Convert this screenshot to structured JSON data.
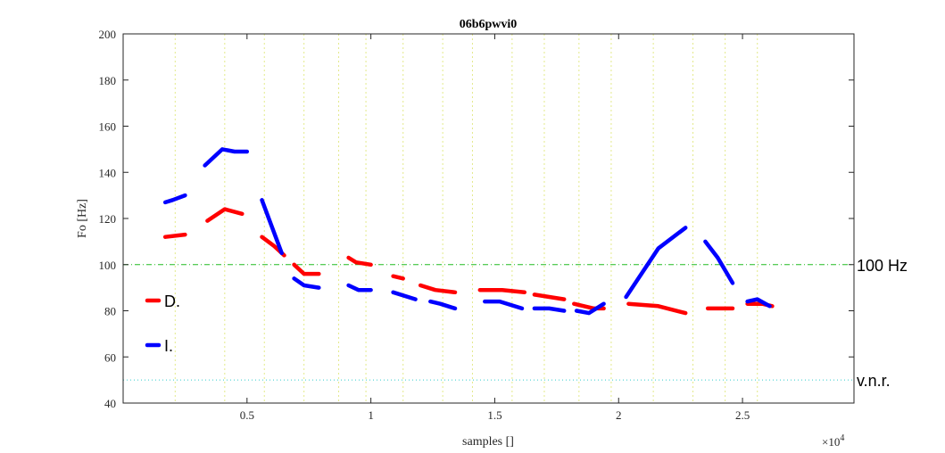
{
  "chart_data": {
    "type": "line",
    "title": "06b6pwvi0",
    "xlabel": "samples []",
    "ylabel": "Fo [Hz]",
    "x_exponent_label": "×10",
    "x_exponent_power": "4",
    "xlim": [
      0,
      29500
    ],
    "ylim": [
      40,
      200
    ],
    "x_ticks": [
      5000,
      10000,
      15000,
      20000,
      25000
    ],
    "x_tick_labels": [
      "0.5",
      "1",
      "1.5",
      "2",
      "2.5"
    ],
    "y_ticks": [
      40,
      60,
      80,
      100,
      120,
      140,
      160,
      180,
      200
    ],
    "y_tick_labels": [
      "40",
      "60",
      "80",
      "100",
      "120",
      "140",
      "160",
      "180",
      "200"
    ],
    "vertical_markers": [
      2100,
      4100,
      5700,
      7300,
      8700,
      9800,
      11300,
      12900,
      14100,
      15700,
      17000,
      18400,
      19700,
      21400,
      23000,
      24300,
      25600
    ],
    "reference_lines": [
      {
        "label": "100 Hz",
        "y": 100,
        "color": "#22bb22",
        "style": "dashdot"
      },
      {
        "label": "v.n.r.",
        "y": 50,
        "color": "#33cccc",
        "style": "dotted"
      }
    ],
    "legend_placement": "left",
    "series": [
      {
        "name": "D.",
        "color": "#ff0000",
        "style": "dashed",
        "segments": [
          [
            [
              1700,
              112
            ],
            [
              2500,
              113
            ]
          ],
          [
            [
              3400,
              119
            ],
            [
              4100,
              124
            ],
            [
              4800,
              122
            ]
          ],
          [
            [
              5600,
              112
            ],
            [
              6100,
              108
            ],
            [
              6500,
              104
            ]
          ],
          [
            [
              6900,
              100
            ],
            [
              7300,
              96
            ],
            [
              7900,
              96
            ]
          ],
          [
            [
              9100,
              103
            ],
            [
              9400,
              101
            ],
            [
              10000,
              100
            ]
          ],
          [
            [
              10900,
              95
            ],
            [
              11300,
              94
            ]
          ],
          [
            [
              12000,
              91
            ],
            [
              12600,
              89
            ],
            [
              13400,
              88
            ]
          ],
          [
            [
              14400,
              89
            ],
            [
              15300,
              89
            ],
            [
              16200,
              88
            ]
          ],
          [
            [
              16600,
              87
            ],
            [
              17200,
              86
            ],
            [
              17800,
              85
            ]
          ],
          [
            [
              18200,
              83
            ],
            [
              19000,
              81
            ],
            [
              19400,
              81
            ]
          ],
          [
            [
              20400,
              83
            ],
            [
              21600,
              82
            ],
            [
              22700,
              79
            ]
          ],
          [
            [
              23600,
              81
            ],
            [
              24600,
              81
            ]
          ],
          [
            [
              25200,
              83
            ],
            [
              25800,
              83
            ],
            [
              26200,
              82
            ]
          ]
        ]
      },
      {
        "name": "I.",
        "color": "#0000ff",
        "style": "dashed",
        "segments": [
          [
            [
              1700,
              127
            ],
            [
              2000,
              128
            ],
            [
              2500,
              130
            ]
          ],
          [
            [
              3300,
              143
            ],
            [
              4000,
              150
            ],
            [
              4500,
              149
            ],
            [
              5000,
              149
            ]
          ],
          [
            [
              5600,
              128
            ],
            [
              6400,
              105
            ]
          ],
          [
            [
              6900,
              94
            ],
            [
              7300,
              91
            ],
            [
              7900,
              90
            ]
          ],
          [
            [
              9100,
              91
            ],
            [
              9500,
              89
            ],
            [
              10000,
              89
            ]
          ],
          [
            [
              10900,
              88
            ],
            [
              11800,
              85
            ]
          ],
          [
            [
              12400,
              84
            ],
            [
              12800,
              83
            ],
            [
              13400,
              81
            ]
          ],
          [
            [
              14600,
              84
            ],
            [
              15200,
              84
            ],
            [
              16100,
              81
            ]
          ],
          [
            [
              16600,
              81
            ],
            [
              17200,
              81
            ],
            [
              17800,
              80
            ]
          ],
          [
            [
              18300,
              80
            ],
            [
              18800,
              79
            ],
            [
              19400,
              83
            ]
          ],
          [
            [
              20300,
              86
            ],
            [
              21600,
              107
            ],
            [
              22700,
              116
            ]
          ],
          [
            [
              23500,
              110
            ],
            [
              24000,
              103
            ],
            [
              24600,
              92
            ]
          ],
          [
            [
              25200,
              84
            ],
            [
              25600,
              85
            ],
            [
              26100,
              82
            ]
          ]
        ]
      }
    ]
  }
}
